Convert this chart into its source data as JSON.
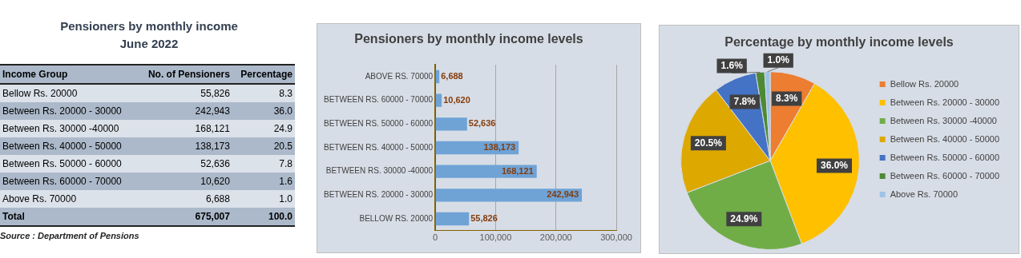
{
  "chart_data": [
    {
      "type": "other",
      "title": "Pensioners  by monthly income",
      "subtitle": "June 2022",
      "xlabel": "Income Group",
      "categories": [
        "Bellow Rs. 20000",
        "Between Rs. 20000 - 30000",
        "Between Rs. 30000 -40000",
        "Between Rs. 40000 - 50000",
        "Between Rs. 50000 - 60000",
        "Between Rs. 60000 - 70000",
        "Above Rs. 70000",
        "Total"
      ],
      "series": [
        {
          "name": "No. of Pensioners",
          "values": [
            55826,
            242943,
            168121,
            138173,
            52636,
            10620,
            6688,
            675007
          ],
          "value_labels": [
            "55,826",
            "242,943",
            "168,121",
            "138,173",
            "52,636",
            "10,620",
            "6,688",
            "675,007"
          ],
          "colors": [
            "#dce2ea",
            "#acb9ca",
            "#dce2ea",
            "#acb9ca",
            "#dce2ea",
            "#acb9ca",
            "#dce2ea",
            "#acb9ca"
          ]
        },
        {
          "name": "Percentage",
          "values": [
            8.3,
            36.0,
            24.9,
            20.5,
            7.8,
            1.6,
            1.0,
            100.0
          ],
          "value_labels": [
            "8.3",
            "36.0",
            "24.9",
            "20.5",
            "7.8",
            "1.6",
            "1.0",
            "100.0"
          ],
          "colors": [
            "#dce2ea",
            "#acb9ca",
            "#dce2ea",
            "#acb9ca",
            "#dce2ea",
            "#acb9ca",
            "#dce2ea",
            "#acb9ca"
          ]
        }
      ],
      "annotations": [
        "Source : Department of Pensions"
      ]
    },
    {
      "type": "bar",
      "orientation": "horizontal",
      "title": "Pensioners by monthly income levels",
      "categories": [
        "ABOVE RS. 70000",
        "BETWEEN RS. 60000 - 70000",
        "BETWEEN RS. 50000 - 60000",
        "BETWEEN RS. 40000 - 50000",
        "BETWEEN RS. 30000 -40000",
        "BETWEEN RS. 20000 - 30000",
        "BELLOW RS. 20000"
      ],
      "values": [
        6688,
        10620,
        52636,
        138173,
        168121,
        242943,
        55826
      ],
      "value_labels": [
        "6,688",
        "10,620",
        "52,636",
        "138,173",
        "168,121",
        "242,943",
        "55,826"
      ],
      "color": "#6fa3d6",
      "xlim": [
        0,
        300000
      ],
      "xticks": [
        0,
        {
          "value": 100000,
          "label": "100,000"
        },
        {
          "value": 200000,
          "label": "200,000"
        },
        {
          "value": 300000,
          "label": "300,000"
        }
      ],
      "grid": "x",
      "legend": false
    },
    {
      "type": "pie",
      "title": "Percentage by monthly income levels",
      "categories": [
        "Bellow Rs. 20000",
        "Between Rs. 20000 - 30000",
        "Between Rs. 30000 -40000",
        "Between Rs. 40000 - 50000",
        "Between Rs. 50000 - 60000",
        "Between Rs. 60000 - 70000",
        "Above Rs. 70000"
      ],
      "values": [
        8.3,
        36.0,
        24.9,
        20.5,
        7.8,
        1.6,
        1.0
      ],
      "value_labels": [
        "8.3%",
        "36.0%",
        "24.9%",
        "20.5%",
        "7.8%",
        "1.6%",
        "1.0%"
      ],
      "colors": [
        "#ed7d31",
        "#ffc000",
        "#70ad47",
        "#dda800",
        "#4472c4",
        "#4e8a35",
        "#9dc3e6"
      ],
      "legend": "right"
    }
  ]
}
